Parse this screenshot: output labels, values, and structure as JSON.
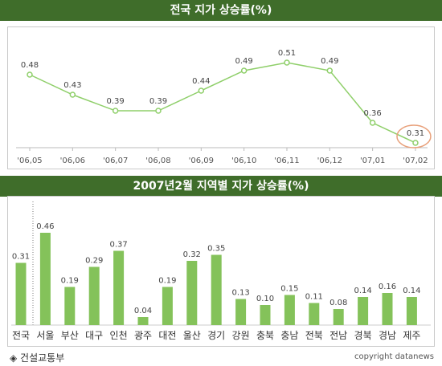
{
  "chart_data": [
    {
      "type": "line",
      "title": "전국 지가 상승률(%)",
      "categories": [
        "'06,05",
        "'06,06",
        "'06,07",
        "'06,08",
        "'06,09",
        "'06,10",
        "'06,11",
        "'06,12",
        "'07,01",
        "'07,02"
      ],
      "values": [
        0.48,
        0.43,
        0.39,
        0.39,
        0.44,
        0.49,
        0.51,
        0.49,
        0.36,
        0.31
      ],
      "labels": [
        "0.48",
        "0.43",
        "0.39",
        "0.39",
        "0.44",
        "0.49",
        "0.51",
        "0.49",
        "0.36",
        "0.31"
      ],
      "highlight_index": 9,
      "colors": {
        "line": "#8fcf6a",
        "highlight": "#e8a07a"
      },
      "grid": false
    },
    {
      "type": "bar",
      "title": "2007년2월 지역별 지가 상승률(%)",
      "categories": [
        "전국",
        "서울",
        "부산",
        "대구",
        "인천",
        "광주",
        "대전",
        "울산",
        "경기",
        "강원",
        "충북",
        "충남",
        "전북",
        "전남",
        "경북",
        "경남",
        "제주"
      ],
      "values": [
        0.31,
        0.46,
        0.19,
        0.29,
        0.37,
        0.04,
        0.19,
        0.32,
        0.35,
        0.13,
        0.1,
        0.15,
        0.11,
        0.08,
        0.14,
        0.16,
        0.14
      ],
      "labels": [
        "0.31",
        "0.46",
        "0.19",
        "0.29",
        "0.37",
        "0.04",
        "0.19",
        "0.32",
        "0.35",
        "0.13",
        "0.10",
        "0.15",
        "0.11",
        "0.08",
        "0.14",
        "0.16",
        "0.14"
      ],
      "colors": {
        "bar": "#84c25a"
      },
      "grid": false
    }
  ],
  "footer": {
    "source": "◈ 건설교통부",
    "copyright": "copyright datanews"
  }
}
